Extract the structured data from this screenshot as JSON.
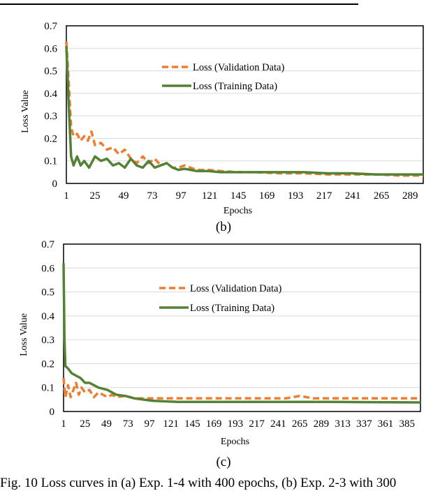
{
  "chart_data": [
    {
      "type": "line",
      "panel_label": "(b)",
      "xlabel": "Epochs",
      "ylabel": "Loss Value",
      "ylim": [
        0,
        0.7
      ],
      "xlim": [
        1,
        300
      ],
      "yticks": [
        "0",
        "0.1",
        "0.2",
        "0.3",
        "0.4",
        "0.5",
        "0.6",
        "0.7"
      ],
      "xticks": [
        "1",
        "25",
        "49",
        "73",
        "97",
        "121",
        "145",
        "169",
        "193",
        "217",
        "241",
        "265",
        "289"
      ],
      "grid": true,
      "legend": "upper-center",
      "series": [
        {
          "name": "Loss (Validation Data)",
          "color": "#ed7d31",
          "style": "dashed",
          "x": [
            1,
            3,
            5,
            7,
            10,
            13,
            16,
            19,
            22,
            25,
            30,
            35,
            40,
            45,
            50,
            55,
            60,
            65,
            70,
            75,
            80,
            85,
            90,
            95,
            100,
            110,
            120,
            130,
            145,
            160,
            180,
            200,
            220,
            240,
            260,
            280,
            300
          ],
          "y": [
            0.63,
            0.45,
            0.25,
            0.21,
            0.22,
            0.19,
            0.21,
            0.19,
            0.23,
            0.17,
            0.18,
            0.15,
            0.16,
            0.13,
            0.15,
            0.11,
            0.09,
            0.12,
            0.09,
            0.11,
            0.08,
            0.09,
            0.07,
            0.07,
            0.08,
            0.06,
            0.06,
            0.055,
            0.05,
            0.05,
            0.045,
            0.045,
            0.04,
            0.04,
            0.04,
            0.035,
            0.035
          ]
        },
        {
          "name": "Loss (Training Data)",
          "color": "#548235",
          "style": "solid",
          "x": [
            1,
            3,
            5,
            7,
            10,
            13,
            16,
            20,
            25,
            30,
            35,
            40,
            45,
            50,
            55,
            60,
            65,
            70,
            75,
            80,
            85,
            90,
            95,
            100,
            110,
            120,
            130,
            145,
            160,
            180,
            200,
            220,
            240,
            260,
            280,
            300
          ],
          "y": [
            0.61,
            0.35,
            0.12,
            0.08,
            0.12,
            0.08,
            0.1,
            0.07,
            0.12,
            0.1,
            0.11,
            0.08,
            0.09,
            0.07,
            0.11,
            0.08,
            0.07,
            0.1,
            0.07,
            0.08,
            0.09,
            0.07,
            0.06,
            0.065,
            0.055,
            0.055,
            0.05,
            0.05,
            0.05,
            0.05,
            0.05,
            0.045,
            0.045,
            0.04,
            0.04,
            0.04
          ]
        }
      ]
    },
    {
      "type": "line",
      "panel_label": "(c)",
      "xlabel": "Epochs",
      "ylabel": "Loss Value",
      "ylim": [
        0,
        0.7
      ],
      "xlim": [
        1,
        400
      ],
      "yticks": [
        "0",
        "0.1",
        "0.2",
        "0.3",
        "0.4",
        "0.5",
        "0.6",
        "0.7"
      ],
      "xticks": [
        "1",
        "25",
        "49",
        "73",
        "97",
        "121",
        "145",
        "169",
        "193",
        "217",
        "241",
        "265",
        "289",
        "313",
        "337",
        "361",
        "385"
      ],
      "grid": true,
      "legend": "upper-center",
      "series": [
        {
          "name": "Loss (Validation Data)",
          "color": "#ed7d31",
          "style": "dashed",
          "x": [
            1,
            3,
            6,
            9,
            12,
            15,
            18,
            21,
            25,
            30,
            35,
            40,
            45,
            50,
            55,
            60,
            70,
            80,
            100,
            150,
            200,
            250,
            265,
            280,
            320,
            360,
            400
          ],
          "y": [
            0.14,
            0.06,
            0.11,
            0.06,
            0.09,
            0.12,
            0.07,
            0.1,
            0.08,
            0.09,
            0.06,
            0.08,
            0.07,
            0.06,
            0.07,
            0.06,
            0.065,
            0.055,
            0.055,
            0.055,
            0.055,
            0.055,
            0.065,
            0.055,
            0.055,
            0.055,
            0.055
          ]
        },
        {
          "name": "Loss (Training Data)",
          "color": "#548235",
          "style": "solid",
          "x": [
            1,
            2,
            3,
            6,
            10,
            15,
            20,
            25,
            30,
            40,
            50,
            60,
            70,
            80,
            90,
            100,
            130,
            200,
            300,
            400
          ],
          "y": [
            0.62,
            0.3,
            0.19,
            0.18,
            0.16,
            0.15,
            0.14,
            0.12,
            0.12,
            0.1,
            0.09,
            0.07,
            0.065,
            0.055,
            0.05,
            0.045,
            0.04,
            0.04,
            0.04,
            0.038
          ]
        }
      ]
    }
  ],
  "caption": "Fig. 10 Loss curves in (a) Exp. 1-4 with 400 epochs, (b) Exp. 2-3 with 300"
}
